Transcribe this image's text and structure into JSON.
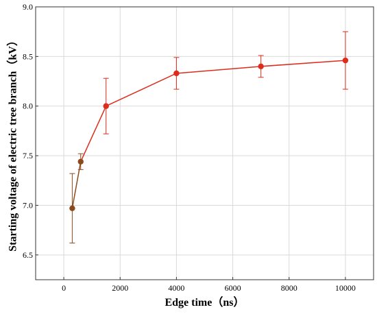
{
  "chart_data": {
    "type": "line",
    "xlabel": "Edge time（ns）",
    "ylabel": "Starting voltage of electric tree branch（kV）",
    "xlim": [
      -1000,
      11000
    ],
    "ylim": [
      6.25,
      9.0
    ],
    "x_ticks": [
      0,
      2000,
      4000,
      6000,
      8000,
      10000
    ],
    "y_ticks": [
      6.5,
      7.0,
      7.5,
      8.0,
      8.5,
      9.0
    ],
    "x_tick_labels": [
      "0",
      "2000",
      "4000",
      "6000",
      "8000",
      "10000"
    ],
    "y_tick_labels": [
      "6.5",
      "7.0",
      "7.5",
      "8.0",
      "8.5",
      "9.0"
    ],
    "grid": true,
    "series": [
      {
        "x": [
          300,
          600,
          1500,
          4000,
          7000,
          10000
        ],
        "y": [
          6.97,
          7.44,
          8.0,
          8.33,
          8.4,
          8.46
        ],
        "err_low": [
          6.62,
          7.36,
          7.72,
          8.17,
          8.29,
          8.17
        ],
        "err_high": [
          7.32,
          7.52,
          8.28,
          8.49,
          8.51,
          8.75
        ],
        "color": "#dd2b1c",
        "highlight_color": "#8b4a1e",
        "highlight_points": [
          0,
          1
        ]
      }
    ]
  }
}
